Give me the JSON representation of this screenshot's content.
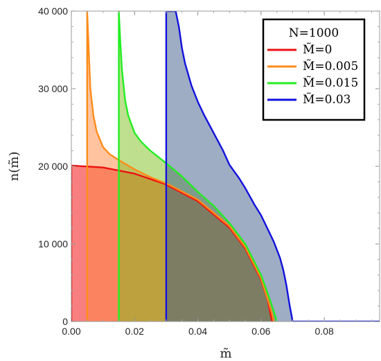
{
  "chart_data": {
    "type": "area",
    "title": "",
    "xlabel": "m̃",
    "ylabel": "n(m̃)",
    "xlim": [
      0,
      0.0975
    ],
    "ylim": [
      0,
      40000
    ],
    "x_ticks": [
      0.0,
      0.02,
      0.04,
      0.06,
      0.08
    ],
    "x_tick_labels": [
      "0.00",
      "0.02",
      "0.04",
      "0.06",
      "0.08"
    ],
    "y_ticks": [
      0,
      10000,
      20000,
      30000,
      40000
    ],
    "y_tick_labels": [
      "0",
      "10 000",
      "20 000",
      "30 000",
      "40 000"
    ],
    "grid": false,
    "legend": {
      "placement": "top-right",
      "title": "N=1000",
      "entries": [
        "M̃=0",
        "M̃=0.005",
        "M̃=0.015",
        "M̃=0.03"
      ]
    },
    "series": [
      {
        "name": "M̃=0",
        "color": "#ee1111",
        "fill": "#f87878",
        "x": [
          0,
          0.01,
          0.02,
          0.03,
          0.04,
          0.05,
          0.055,
          0.06,
          0.062,
          0.0635
        ],
        "values": [
          20100,
          19850,
          19050,
          17650,
          15500,
          12100,
          9400,
          5400,
          2900,
          0
        ]
      },
      {
        "name": "M̃=0.005",
        "color": "#ff8c1a",
        "fill": "#ff8840",
        "x": [
          0.005,
          0.0055,
          0.006,
          0.007,
          0.008,
          0.01,
          0.012,
          0.015,
          0.02,
          0.025,
          0.03,
          0.04,
          0.05,
          0.055,
          0.06,
          0.062,
          0.0635,
          0.064
        ],
        "values": [
          40000,
          35000,
          30000,
          26500,
          24500,
          22500,
          21600,
          20800,
          19600,
          18600,
          17800,
          15700,
          12300,
          9600,
          5600,
          3000,
          1000,
          0
        ]
      },
      {
        "name": "M̃=0.015",
        "color": "#22ee22",
        "fill": "#7ec01e",
        "x": [
          0.015,
          0.0155,
          0.016,
          0.017,
          0.018,
          0.02,
          0.022,
          0.025,
          0.03,
          0.035,
          0.04,
          0.045,
          0.05,
          0.055,
          0.06,
          0.063,
          0.0645,
          0.065
        ],
        "values": [
          40000,
          36000,
          32500,
          28500,
          26500,
          24300,
          23200,
          22000,
          20400,
          18700,
          16700,
          14900,
          12700,
          10000,
          6000,
          2600,
          700,
          0
        ]
      },
      {
        "name": "M̃=0.03",
        "color": "#1111dd",
        "fill": "#3e5a8a",
        "x": [
          0.03,
          0.033,
          0.034,
          0.035,
          0.036,
          0.038,
          0.04,
          0.042,
          0.045,
          0.048,
          0.05,
          0.053,
          0.055,
          0.058,
          0.06,
          0.062,
          0.064,
          0.066,
          0.067,
          0.068,
          0.069,
          0.07
        ],
        "values": [
          40000,
          40000,
          38000,
          35200,
          33200,
          30400,
          28300,
          26600,
          24300,
          22000,
          20200,
          18500,
          17200,
          15000,
          13700,
          12000,
          10300,
          8200,
          6700,
          4700,
          2200,
          0
        ]
      }
    ]
  }
}
